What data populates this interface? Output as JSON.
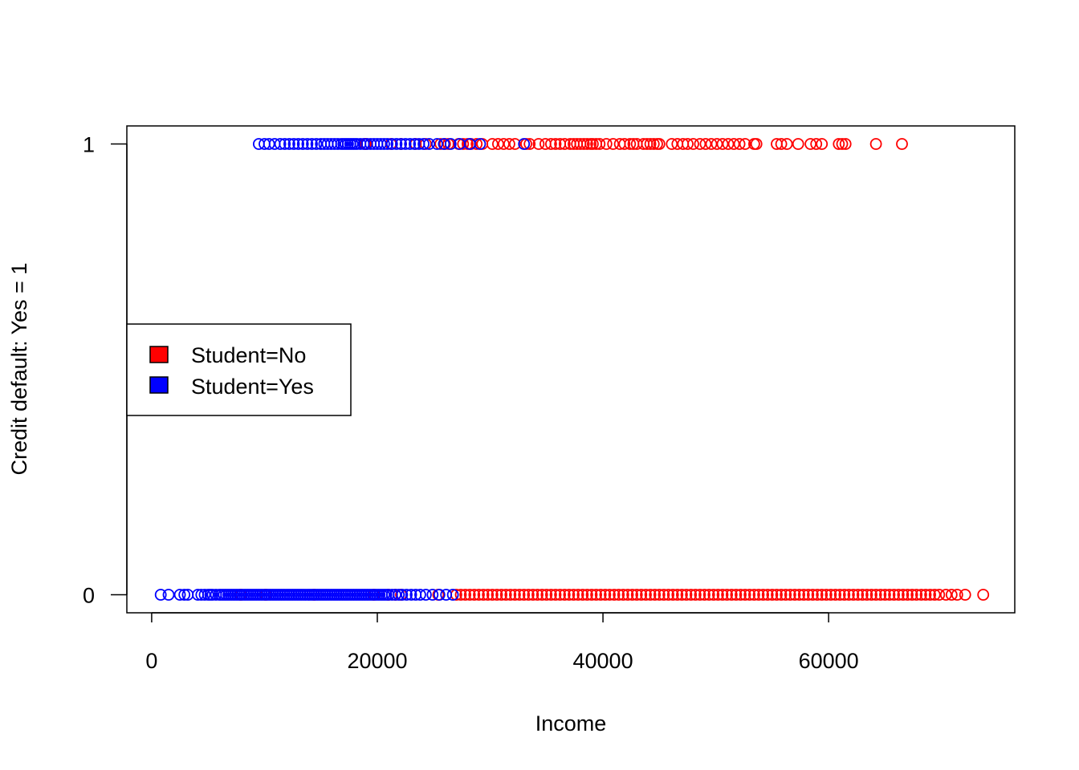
{
  "chart_data": {
    "type": "scatter",
    "title": "",
    "xlabel": "Income",
    "ylabel": "Credit default: Yes = 1",
    "xlim": [
      -2200,
      76500
    ],
    "ylim": [
      -0.04,
      1.04
    ],
    "x_ticks": [
      0,
      20000,
      40000,
      60000
    ],
    "x_tick_labels": [
      "0",
      "20000",
      "40000",
      "60000"
    ],
    "y_ticks": [
      0,
      1
    ],
    "y_tick_labels": [
      "0",
      "1"
    ],
    "grid": false,
    "legend": {
      "position": "left-middle",
      "entries": [
        {
          "label": "Student=No",
          "color": "#ff0000"
        },
        {
          "label": "Student=Yes",
          "color": "#0000ff"
        }
      ]
    },
    "marker": "open-circle",
    "series": [
      {
        "name": "Student=No",
        "color": "#ff0000",
        "points": [
          {
            "y": 1,
            "x": [
              18900,
              19000,
              21200,
              22100,
              23400,
              24300,
              25600,
              26000,
              26300,
              27200,
              27600,
              28000,
              28300,
              28800,
              29300,
              30200,
              30700,
              31200,
              31700,
              32200,
              33200,
              33500,
              34300,
              34900,
              35400,
              35800,
              36200,
              36600,
              37100,
              37400,
              37700,
              38000,
              38300,
              38600,
              38900,
              39100,
              39400,
              39700,
              40300,
              40900,
              41500,
              41900,
              42400,
              42700,
              43000,
              43600,
              43900,
              44200,
              44500,
              44800,
              45000,
              46100,
              46600,
              47100,
              47500,
              48000,
              48600,
              49100,
              49600,
              50100,
              50600,
              51100,
              51600,
              52100,
              52600,
              53400,
              53600,
              55400,
              55800,
              56300,
              57300,
              58400,
              58900,
              59400,
              60900,
              61200,
              61500,
              64200,
              66500
            ]
          },
          {
            "y": 0,
            "x": [
              7900,
              10100,
              14400,
              19700,
              21000,
              21600,
              22100,
              25400,
              27000,
              27400,
              27800,
              28200,
              28600,
              29000,
              29400,
              29800,
              30200,
              30600,
              31000,
              31400,
              31800,
              32200,
              32600,
              33000,
              33400,
              33800,
              34200,
              34600,
              35000,
              35400,
              35800,
              36200,
              36600,
              37000,
              37400,
              37800,
              38200,
              38600,
              39000,
              39400,
              39800,
              40200,
              40600,
              41000,
              41400,
              41800,
              42200,
              42600,
              43000,
              43400,
              43800,
              44200,
              44600,
              45000,
              45400,
              45800,
              46200,
              46600,
              47000,
              47400,
              47800,
              48200,
              48600,
              49000,
              49400,
              49800,
              50200,
              50600,
              51000,
              51400,
              51800,
              52200,
              52600,
              53000,
              53400,
              53800,
              54200,
              54600,
              55000,
              55400,
              55800,
              56200,
              56600,
              57000,
              57400,
              57800,
              58200,
              58600,
              59000,
              59400,
              59800,
              60200,
              60600,
              61000,
              61400,
              61800,
              62200,
              62600,
              63000,
              63400,
              63800,
              64200,
              64600,
              65000,
              65400,
              65800,
              66200,
              66600,
              67000,
              67400,
              67800,
              68200,
              68600,
              69000,
              69400,
              69800,
              70400,
              70900,
              71400,
              72100,
              73700
            ]
          }
        ]
      },
      {
        "name": "Student=Yes",
        "color": "#0000ff",
        "points": [
          {
            "y": 1,
            "x": [
              9500,
              10000,
              10400,
              10900,
              11400,
              11800,
              12200,
              12600,
              13000,
              13400,
              13800,
              14200,
              14600,
              15000,
              15300,
              15600,
              15900,
              16200,
              16500,
              16800,
              17000,
              17200,
              17400,
              17600,
              17800,
              18000,
              18200,
              18500,
              18800,
              19100,
              19400,
              19700,
              20000,
              20300,
              20600,
              20900,
              21300,
              21700,
              22100,
              22500,
              22900,
              23300,
              23700,
              24100,
              24600,
              25300,
              25900,
              26500,
              27300,
              28200,
              29100,
              33000
            ]
          },
          {
            "y": 0,
            "x": [
              800,
              1500,
              2500,
              2900,
              3200,
              4100,
              4400,
              4700,
              5000,
              5200,
              5400,
              5700,
              6000,
              6200,
              6400,
              6600,
              6800,
              7000,
              7200,
              7400,
              7600,
              7800,
              8000,
              8200,
              8400,
              8600,
              8800,
              9000,
              9200,
              9400,
              9600,
              9800,
              10000,
              10200,
              10400,
              10600,
              10800,
              11000,
              11200,
              11400,
              11600,
              11800,
              12000,
              12200,
              12400,
              12600,
              12800,
              13000,
              13200,
              13400,
              13600,
              13800,
              14000,
              14200,
              14400,
              14600,
              14800,
              15000,
              15200,
              15400,
              15600,
              15800,
              16000,
              16200,
              16400,
              16600,
              16800,
              17000,
              17200,
              17400,
              17600,
              17800,
              18000,
              18200,
              18400,
              18600,
              18800,
              19000,
              19200,
              19400,
              19600,
              19800,
              20000,
              20200,
              20400,
              20600,
              20800,
              21000,
              21300,
              21600,
              21900,
              22200,
              22600,
              23000,
              23400,
              23800,
              24300,
              24900,
              25500,
              26100,
              26700
            ]
          }
        ]
      }
    ]
  }
}
